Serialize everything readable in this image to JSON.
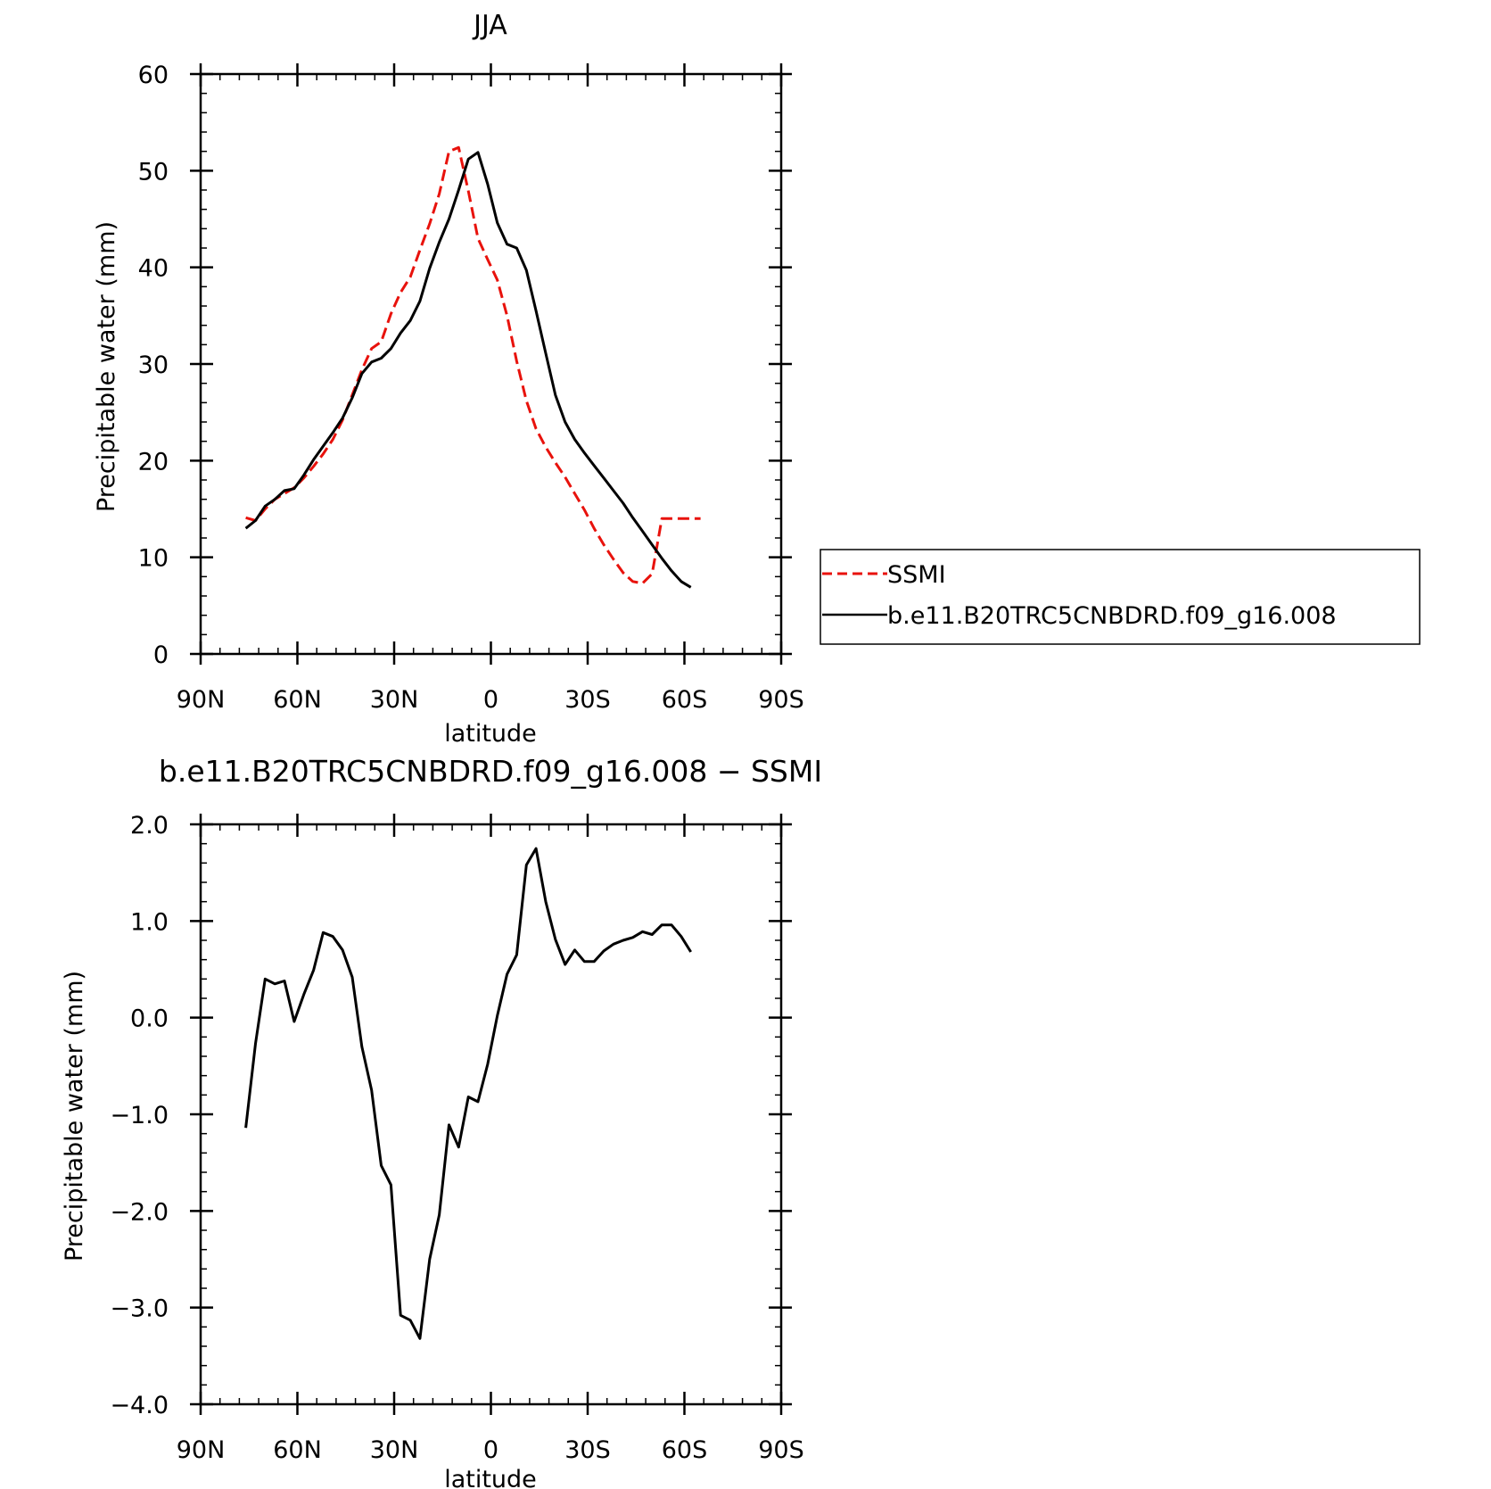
{
  "chart_data": [
    {
      "type": "line",
      "title": "JJA",
      "xlabel": "latitude",
      "ylabel": "Precipitable water (mm)",
      "xlim": [
        90,
        -90
      ],
      "ylim": [
        0,
        60
      ],
      "yticks": [
        0,
        10,
        20,
        30,
        40,
        50,
        60
      ],
      "ytick_labels": [
        "0",
        "10",
        "20",
        "30",
        "40",
        "50",
        "60"
      ],
      "xticks": [
        90,
        60,
        30,
        0,
        -30,
        -60,
        -90
      ],
      "xtick_labels": [
        "90N",
        "60N",
        "30N",
        "0",
        "30S",
        "60S",
        "90S"
      ],
      "legend": {
        "placement": "right",
        "entries": [
          {
            "label": "SSMI",
            "color": "#e8120c",
            "style": "dashed"
          },
          {
            "label": "b.e11.B20TRC5CNBDRD.f09_g16.008",
            "color": "#000000",
            "style": "solid"
          }
        ]
      },
      "series": [
        {
          "name": "SSMI",
          "color": "#e8120c",
          "style": "dashed",
          "x": [
            76,
            73,
            70,
            67,
            64,
            61,
            58,
            55,
            52,
            49,
            46,
            43,
            40,
            37,
            34,
            31,
            28,
            25,
            22,
            19,
            16,
            13,
            10,
            7,
            4,
            1,
            -2,
            -5,
            -8,
            -11,
            -14,
            -17,
            -20,
            -23,
            -26,
            -29,
            -32,
            -35,
            -38,
            -41,
            -44,
            -47,
            -50,
            -53,
            -56,
            -59,
            -62,
            -65
          ],
          "y": [
            14.1,
            13.8,
            15,
            16,
            16.6,
            17.2,
            18.2,
            19.4,
            20.7,
            22.2,
            24.2,
            26.8,
            29.4,
            31.6,
            32.3,
            35.2,
            37.4,
            39,
            41.8,
            44.5,
            47.6,
            52,
            52.4,
            47.9,
            43,
            40.8,
            38.7,
            35,
            30.3,
            26.2,
            23.3,
            21.4,
            19.8,
            18.3,
            16.6,
            14.9,
            13,
            11.3,
            9.8,
            8.4,
            7.5,
            7.3,
            8.3,
            14,
            14,
            14,
            14,
            14
          ]
        },
        {
          "name": "b.e11.B20TRC5CNBDRD.f09_g16.008",
          "color": "#000000",
          "style": "solid",
          "x": [
            76,
            73,
            70,
            67,
            64,
            61,
            58,
            55,
            52,
            49,
            46,
            43,
            40,
            37,
            34,
            31,
            28,
            25,
            22,
            19,
            16,
            13,
            10,
            7,
            4,
            1,
            -2,
            -5,
            -8,
            -11,
            -14,
            -17,
            -20,
            -23,
            -26,
            -29,
            -32,
            -35,
            -38,
            -41,
            -44,
            -47,
            -50,
            -53,
            -56,
            -59,
            -62
          ],
          "y": [
            13,
            13.8,
            15.3,
            16,
            16.9,
            17.1,
            18.5,
            20.1,
            21.5,
            22.9,
            24.4,
            26.5,
            29,
            30.2,
            30.6,
            31.6,
            33.2,
            34.5,
            36.5,
            39.9,
            42.6,
            45,
            48,
            51.2,
            51.9,
            48.6,
            44.6,
            42.4,
            42,
            39.7,
            35.5,
            31.1,
            26.8,
            24,
            22.2,
            20.8,
            19.5,
            18.2,
            16.9,
            15.6,
            14.1,
            12.7,
            11.3,
            9.9,
            8.6,
            7.5,
            6.9
          ]
        }
      ]
    },
    {
      "type": "line",
      "title": "b.e11.B20TRC5CNBDRD.f09_g16.008 − SSMI",
      "xlabel": "latitude",
      "ylabel": "Precipitable water (mm)",
      "xlim": [
        90,
        -90
      ],
      "ylim": [
        -4,
        2
      ],
      "yticks": [
        -4,
        -3,
        -2,
        -1,
        0,
        1,
        2
      ],
      "ytick_labels": [
        "−4.0",
        "−3.0",
        "−2.0",
        "−1.0",
        "0.0",
        "1.0",
        "2.0"
      ],
      "xticks": [
        90,
        60,
        30,
        0,
        -30,
        -60,
        -90
      ],
      "xtick_labels": [
        "90N",
        "60N",
        "30N",
        "0",
        "30S",
        "60S",
        "90S"
      ],
      "series": [
        {
          "color": "#000000",
          "style": "solid",
          "x": [
            76,
            73,
            70,
            67,
            64,
            61,
            58,
            55,
            52,
            49,
            46,
            43,
            40,
            37,
            34,
            31,
            28,
            25,
            22,
            19,
            16,
            13,
            10,
            7,
            4,
            1,
            -2,
            -5,
            -8,
            -11,
            -14,
            -17,
            -20,
            -23,
            -26,
            -29,
            -32,
            -35,
            -38,
            -41,
            -44,
            -47,
            -50,
            -53,
            -56,
            -59,
            -62
          ],
          "y": [
            -1.14,
            -0.27,
            0.4,
            0.35,
            0.38,
            -0.04,
            0.24,
            0.49,
            0.88,
            0.84,
            0.7,
            0.42,
            -0.3,
            -0.75,
            -1.53,
            -1.73,
            -3.08,
            -3.13,
            -3.32,
            -2.5,
            -2.04,
            -1.11,
            -1.34,
            -0.82,
            -0.87,
            -0.48,
            0.02,
            0.45,
            0.65,
            1.58,
            1.75,
            1.2,
            0.81,
            0.55,
            0.7,
            0.58,
            0.58,
            0.69,
            0.76,
            0.8,
            0.83,
            0.89,
            0.86,
            0.96,
            0.96,
            0.84,
            0.68
          ]
        }
      ]
    }
  ]
}
